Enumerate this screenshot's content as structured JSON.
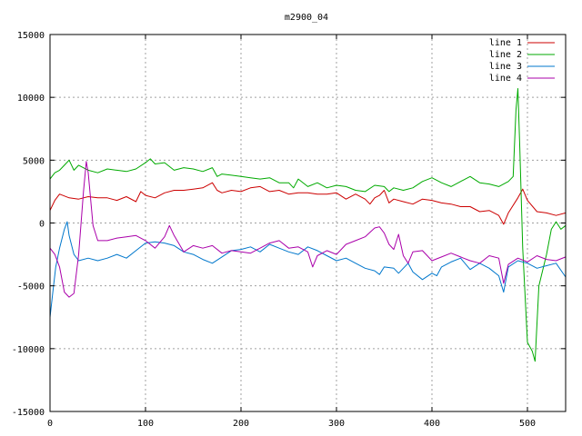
{
  "chart_data": {
    "type": "line",
    "title": "m2900_04",
    "xlabel": "",
    "ylabel": "",
    "xlim": [
      0,
      540
    ],
    "ylim": [
      -15000,
      15000
    ],
    "grid": true,
    "legend_position": "top-right",
    "x_ticks": [
      0,
      100,
      200,
      300,
      400,
      500
    ],
    "y_ticks": [
      -15000,
      -10000,
      -5000,
      0,
      5000,
      10000,
      15000
    ],
    "x_tick_labels": [
      "0",
      "100",
      "200",
      "300",
      "400",
      "500"
    ],
    "y_tick_labels": [
      "-15000",
      "-10000",
      "-5000",
      "0",
      "5000",
      "10000",
      "15000"
    ],
    "series": [
      {
        "name": "line 1",
        "color": "#cc0000",
        "points": [
          [
            0,
            1000
          ],
          [
            5,
            1800
          ],
          [
            10,
            2300
          ],
          [
            20,
            2000
          ],
          [
            30,
            1900
          ],
          [
            40,
            2100
          ],
          [
            50,
            2000
          ],
          [
            60,
            2000
          ],
          [
            70,
            1800
          ],
          [
            80,
            2100
          ],
          [
            90,
            1700
          ],
          [
            95,
            2500
          ],
          [
            100,
            2200
          ],
          [
            110,
            2000
          ],
          [
            120,
            2400
          ],
          [
            130,
            2600
          ],
          [
            140,
            2600
          ],
          [
            150,
            2700
          ],
          [
            160,
            2800
          ],
          [
            170,
            3200
          ],
          [
            175,
            2600
          ],
          [
            180,
            2400
          ],
          [
            190,
            2600
          ],
          [
            200,
            2500
          ],
          [
            210,
            2800
          ],
          [
            220,
            2900
          ],
          [
            230,
            2500
          ],
          [
            240,
            2600
          ],
          [
            250,
            2300
          ],
          [
            260,
            2400
          ],
          [
            270,
            2400
          ],
          [
            280,
            2300
          ],
          [
            290,
            2300
          ],
          [
            300,
            2400
          ],
          [
            310,
            1900
          ],
          [
            320,
            2300
          ],
          [
            330,
            1900
          ],
          [
            335,
            1500
          ],
          [
            340,
            2000
          ],
          [
            345,
            2200
          ],
          [
            350,
            2600
          ],
          [
            355,
            1600
          ],
          [
            360,
            1900
          ],
          [
            370,
            1700
          ],
          [
            380,
            1500
          ],
          [
            390,
            1900
          ],
          [
            400,
            1800
          ],
          [
            410,
            1600
          ],
          [
            420,
            1500
          ],
          [
            430,
            1300
          ],
          [
            440,
            1300
          ],
          [
            450,
            900
          ],
          [
            460,
            1000
          ],
          [
            470,
            600
          ],
          [
            475,
            -100
          ],
          [
            480,
            800
          ],
          [
            490,
            2000
          ],
          [
            495,
            2700
          ],
          [
            500,
            1800
          ],
          [
            510,
            900
          ],
          [
            520,
            800
          ],
          [
            530,
            600
          ],
          [
            540,
            800
          ]
        ]
      },
      {
        "name": "line 2",
        "color": "#00aa00",
        "points": [
          [
            0,
            3500
          ],
          [
            5,
            4000
          ],
          [
            10,
            4200
          ],
          [
            15,
            4600
          ],
          [
            20,
            5000
          ],
          [
            25,
            4200
          ],
          [
            30,
            4600
          ],
          [
            40,
            4200
          ],
          [
            50,
            4000
          ],
          [
            60,
            4300
          ],
          [
            70,
            4200
          ],
          [
            80,
            4100
          ],
          [
            90,
            4300
          ],
          [
            100,
            4800
          ],
          [
            105,
            5100
          ],
          [
            110,
            4700
          ],
          [
            120,
            4800
          ],
          [
            130,
            4200
          ],
          [
            140,
            4400
          ],
          [
            150,
            4300
          ],
          [
            160,
            4100
          ],
          [
            170,
            4400
          ],
          [
            175,
            3700
          ],
          [
            180,
            3900
          ],
          [
            190,
            3800
          ],
          [
            200,
            3700
          ],
          [
            210,
            3600
          ],
          [
            220,
            3500
          ],
          [
            230,
            3600
          ],
          [
            240,
            3200
          ],
          [
            250,
            3200
          ],
          [
            255,
            2800
          ],
          [
            260,
            3500
          ],
          [
            270,
            2900
          ],
          [
            280,
            3200
          ],
          [
            290,
            2800
          ],
          [
            300,
            3000
          ],
          [
            310,
            2900
          ],
          [
            320,
            2600
          ],
          [
            330,
            2500
          ],
          [
            340,
            3000
          ],
          [
            350,
            2900
          ],
          [
            355,
            2500
          ],
          [
            360,
            2800
          ],
          [
            370,
            2600
          ],
          [
            380,
            2800
          ],
          [
            390,
            3300
          ],
          [
            400,
            3600
          ],
          [
            410,
            3200
          ],
          [
            420,
            2900
          ],
          [
            430,
            3300
          ],
          [
            440,
            3700
          ],
          [
            450,
            3200
          ],
          [
            460,
            3100
          ],
          [
            470,
            2900
          ],
          [
            480,
            3300
          ],
          [
            485,
            3700
          ],
          [
            488,
            9000
          ],
          [
            490,
            10700
          ],
          [
            492,
            6000
          ],
          [
            495,
            -2000
          ],
          [
            500,
            -9500
          ],
          [
            505,
            -10200
          ],
          [
            508,
            -11000
          ],
          [
            512,
            -5000
          ],
          [
            520,
            -2500
          ],
          [
            525,
            -500
          ],
          [
            530,
            100
          ],
          [
            535,
            -500
          ],
          [
            540,
            -200
          ]
        ]
      },
      {
        "name": "line 3",
        "color": "#0077cc",
        "points": [
          [
            0,
            -7500
          ],
          [
            3,
            -5500
          ],
          [
            6,
            -3500
          ],
          [
            10,
            -2000
          ],
          [
            15,
            -500
          ],
          [
            18,
            100
          ],
          [
            20,
            -1000
          ],
          [
            25,
            -2500
          ],
          [
            30,
            -3000
          ],
          [
            40,
            -2800
          ],
          [
            50,
            -3000
          ],
          [
            60,
            -2800
          ],
          [
            70,
            -2500
          ],
          [
            80,
            -2800
          ],
          [
            90,
            -2200
          ],
          [
            100,
            -1600
          ],
          [
            110,
            -1500
          ],
          [
            120,
            -1600
          ],
          [
            130,
            -1800
          ],
          [
            140,
            -2300
          ],
          [
            150,
            -2500
          ],
          [
            160,
            -2900
          ],
          [
            170,
            -3200
          ],
          [
            180,
            -2700
          ],
          [
            190,
            -2200
          ],
          [
            200,
            -2100
          ],
          [
            210,
            -1900
          ],
          [
            220,
            -2300
          ],
          [
            230,
            -1700
          ],
          [
            240,
            -2000
          ],
          [
            250,
            -2300
          ],
          [
            260,
            -2500
          ],
          [
            270,
            -1900
          ],
          [
            280,
            -2200
          ],
          [
            290,
            -2600
          ],
          [
            300,
            -3000
          ],
          [
            310,
            -2800
          ],
          [
            320,
            -3200
          ],
          [
            330,
            -3600
          ],
          [
            340,
            -3800
          ],
          [
            345,
            -4100
          ],
          [
            350,
            -3500
          ],
          [
            360,
            -3600
          ],
          [
            365,
            -4000
          ],
          [
            370,
            -3600
          ],
          [
            375,
            -3200
          ],
          [
            380,
            -3900
          ],
          [
            390,
            -4500
          ],
          [
            400,
            -4000
          ],
          [
            405,
            -4200
          ],
          [
            410,
            -3500
          ],
          [
            420,
            -3100
          ],
          [
            430,
            -2800
          ],
          [
            440,
            -3700
          ],
          [
            450,
            -3200
          ],
          [
            460,
            -3600
          ],
          [
            470,
            -4200
          ],
          [
            475,
            -5500
          ],
          [
            480,
            -3500
          ],
          [
            490,
            -3000
          ],
          [
            500,
            -3200
          ],
          [
            510,
            -3600
          ],
          [
            520,
            -3400
          ],
          [
            530,
            -3200
          ],
          [
            540,
            -4300
          ]
        ]
      },
      {
        "name": "line 4",
        "color": "#aa00aa",
        "points": [
          [
            0,
            -2000
          ],
          [
            5,
            -2500
          ],
          [
            10,
            -3500
          ],
          [
            15,
            -5500
          ],
          [
            20,
            -5900
          ],
          [
            25,
            -5600
          ],
          [
            30,
            -2500
          ],
          [
            35,
            2500
          ],
          [
            38,
            4900
          ],
          [
            40,
            4000
          ],
          [
            45,
            -200
          ],
          [
            50,
            -1400
          ],
          [
            60,
            -1400
          ],
          [
            70,
            -1200
          ],
          [
            80,
            -1100
          ],
          [
            90,
            -1000
          ],
          [
            100,
            -1400
          ],
          [
            110,
            -2000
          ],
          [
            120,
            -1100
          ],
          [
            125,
            -200
          ],
          [
            130,
            -1000
          ],
          [
            140,
            -2300
          ],
          [
            150,
            -1800
          ],
          [
            160,
            -2000
          ],
          [
            170,
            -1800
          ],
          [
            180,
            -2400
          ],
          [
            190,
            -2200
          ],
          [
            200,
            -2300
          ],
          [
            210,
            -2400
          ],
          [
            220,
            -2000
          ],
          [
            230,
            -1600
          ],
          [
            240,
            -1400
          ],
          [
            250,
            -2000
          ],
          [
            260,
            -1900
          ],
          [
            270,
            -2300
          ],
          [
            275,
            -3500
          ],
          [
            280,
            -2600
          ],
          [
            290,
            -2200
          ],
          [
            300,
            -2500
          ],
          [
            310,
            -1700
          ],
          [
            320,
            -1400
          ],
          [
            330,
            -1100
          ],
          [
            340,
            -400
          ],
          [
            345,
            -300
          ],
          [
            350,
            -800
          ],
          [
            355,
            -1700
          ],
          [
            360,
            -2100
          ],
          [
            365,
            -900
          ],
          [
            370,
            -2600
          ],
          [
            375,
            -3200
          ],
          [
            380,
            -2300
          ],
          [
            390,
            -2200
          ],
          [
            400,
            -3000
          ],
          [
            410,
            -2700
          ],
          [
            420,
            -2400
          ],
          [
            430,
            -2700
          ],
          [
            440,
            -3000
          ],
          [
            450,
            -3200
          ],
          [
            460,
            -2600
          ],
          [
            470,
            -2800
          ],
          [
            475,
            -4800
          ],
          [
            480,
            -3300
          ],
          [
            490,
            -2800
          ],
          [
            500,
            -3100
          ],
          [
            510,
            -2600
          ],
          [
            520,
            -2900
          ],
          [
            530,
            -3000
          ],
          [
            540,
            -2700
          ]
        ]
      }
    ]
  }
}
